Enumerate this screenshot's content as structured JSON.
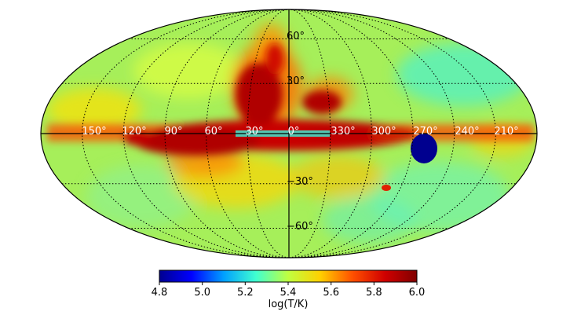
{
  "map": {
    "projection": "mollweide",
    "colormap": [
      "#00008f",
      "#0000ff",
      "#00a0ff",
      "#40ffd0",
      "#c0ff40",
      "#ffd000",
      "#ff5000",
      "#d00000",
      "#800000"
    ],
    "graticule": {
      "lon_step_deg": 30,
      "lat_step_deg": 30,
      "grid_style": "dotted"
    },
    "lon_labels": [
      "150°",
      "120°",
      "90°",
      "60°",
      "30°",
      "0°",
      "330°",
      "300°",
      "270°",
      "240°",
      "210°"
    ],
    "lat_labels": [
      "60°",
      "30°",
      "−30°",
      "−60°"
    ],
    "masked_region": {
      "color": "#00008f",
      "lon_deg": 270,
      "lat_deg": -2
    }
  },
  "colorbar": {
    "min": 4.8,
    "max": 6.0,
    "ticks": [
      "4.8",
      "5.0",
      "5.2",
      "5.4",
      "5.6",
      "5.8",
      "6.0"
    ],
    "label": "log(T/K)"
  }
}
